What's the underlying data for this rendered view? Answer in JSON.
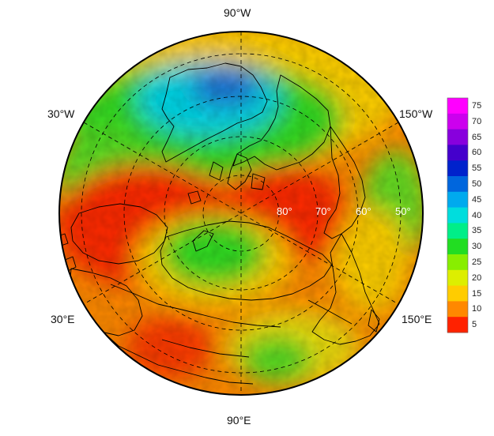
{
  "map": {
    "projection": "north-polar-stereographic",
    "longitude_labels": {
      "top": "90°W",
      "bottom": "90°E",
      "upper_left": "30°W",
      "upper_right": "150°W",
      "lower_left": "30°E",
      "lower_right": "150°E"
    },
    "latitude_labels": [
      "80°",
      "70°",
      "60°",
      "50°"
    ],
    "colorbar": {
      "ticks": [
        "75",
        "70",
        "65",
        "60",
        "55",
        "50",
        "45",
        "40",
        "35",
        "30",
        "25",
        "20",
        "15",
        "10",
        "5"
      ],
      "colors": [
        "#ff00ff",
        "#cc00ee",
        "#8800dd",
        "#4400cc",
        "#0022cc",
        "#0066dd",
        "#00aaee",
        "#00dddd",
        "#00ee88",
        "#22dd22",
        "#88ee00",
        "#ddee00",
        "#ffcc00",
        "#ff8800",
        "#ff2200"
      ]
    },
    "field_colors": {
      "red": "#ff2a00",
      "orange": "#ff7a00",
      "yellow": "#ffd000",
      "green": "#33dd22",
      "cyan": "#00d8e8",
      "blue": "#1e74d8"
    }
  }
}
